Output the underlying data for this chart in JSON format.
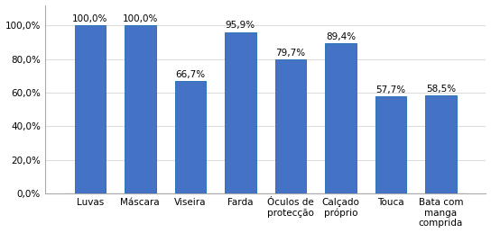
{
  "values": [
    100.0,
    100.0,
    66.7,
    95.9,
    79.7,
    89.4,
    57.7,
    58.5
  ],
  "labels": [
    "100,0%",
    "100,0%",
    "66,7%",
    "95,9%",
    "79,7%",
    "89,4%",
    "57,7%",
    "58,5%"
  ],
  "bar_color": "#4472C4",
  "bar_edge_color": "#2E75B6",
  "ylim": [
    0,
    112
  ],
  "yticks": [
    0,
    20,
    40,
    60,
    80,
    100
  ],
  "ytick_labels": [
    "0,0%",
    "20,0%",
    "40,0%",
    "60,0%",
    "80,0%",
    "100,0%"
  ],
  "background_color": "#ffffff",
  "label_fontsize": 7.5,
  "tick_fontsize": 7.5
}
